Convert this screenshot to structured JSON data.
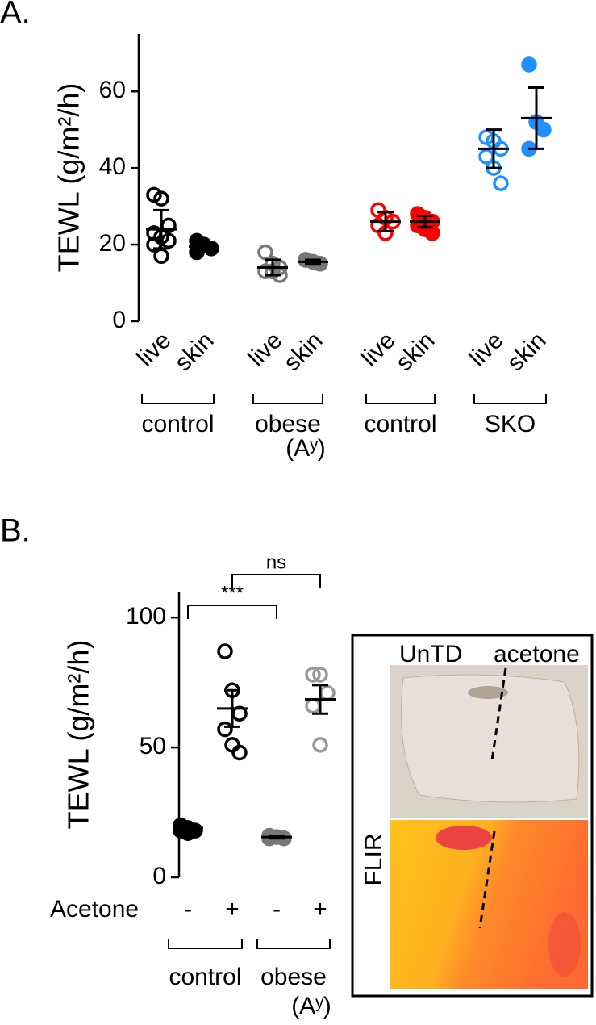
{
  "chart_data": [
    {
      "type": "strip",
      "panel": "A.",
      "ylabel": "TEWL (g/m²/h)",
      "ylim": [
        0,
        75
      ],
      "yticks": [
        0,
        20,
        40,
        60
      ],
      "groups": [
        {
          "label": "control",
          "categories": [
            {
              "label": "live",
              "color": "#000000",
              "filled": false,
              "values": [
                33,
                32,
                25,
                23,
                22,
                21,
                20,
                17
              ],
              "mean": 24,
              "error": 5
            },
            {
              "label": "skin",
              "color": "#000000",
              "filled": true,
              "values": [
                21,
                20,
                19,
                18
              ],
              "mean": 19.5,
              "error": 1
            }
          ]
        },
        {
          "label": "obese",
          "sublabel": "(Aʸ)",
          "categories": [
            {
              "label": "live",
              "color": "#777777",
              "filled": false,
              "values": [
                18,
                15,
                14,
                13,
                13,
                12
              ],
              "mean": 14,
              "error": 2
            },
            {
              "label": "skin",
              "color": "#777777",
              "filled": true,
              "values": [
                16,
                15.5,
                15,
                16
              ],
              "mean": 15.5,
              "error": 0.5
            }
          ]
        },
        {
          "label": "control",
          "categories": [
            {
              "label": "live",
              "color": "#ff0000",
              "filled": false,
              "values": [
                29,
                27,
                26,
                25,
                23
              ],
              "mean": 26,
              "error": 2.5
            },
            {
              "label": "skin",
              "color": "#ff0000",
              "filled": true,
              "values": [
                28,
                27,
                26,
                25,
                24,
                23
              ],
              "mean": 26,
              "error": 1.5
            }
          ]
        },
        {
          "label": "SKO",
          "categories": [
            {
              "label": "live",
              "color": "#1e90ff",
              "filled": false,
              "values": [
                48,
                47,
                45,
                43,
                40,
                36
              ],
              "mean": 45,
              "error": 5
            },
            {
              "label": "skin",
              "color": "#1e90ff",
              "filled": true,
              "values": [
                67,
                52,
                50,
                45
              ],
              "mean": 53,
              "error": 8
            }
          ]
        }
      ]
    },
    {
      "type": "strip",
      "panel": "B.",
      "ylabel": "TEWL (g/m²/h)",
      "ylim": [
        0,
        110
      ],
      "yticks": [
        0,
        50,
        100
      ],
      "row_label": "Acetone",
      "annotations": [
        "***",
        "ns"
      ],
      "groups": [
        {
          "label": "control",
          "categories": [
            {
              "label": "-",
              "color": "#000000",
              "filled": true,
              "values": [
                20,
                19,
                18,
                18,
                17
              ],
              "mean": 19,
              "error": 1
            },
            {
              "label": "+",
              "color": "#000000",
              "filled": false,
              "values": [
                87,
                72,
                63,
                57,
                51,
                48
              ],
              "mean": 65,
              "error": 7
            }
          ]
        },
        {
          "label": "obese",
          "sublabel": "(Aʸ)",
          "categories": [
            {
              "label": "-",
              "color": "#777777",
              "filled": true,
              "values": [
                16,
                15.5,
                15,
                15
              ],
              "mean": 15.5,
              "error": 0.5
            },
            {
              "label": "+",
              "color": "#999999",
              "filled": false,
              "values": [
                78,
                78,
                71,
                66,
                51
              ],
              "mean": 68.5,
              "error": 5.5
            }
          ]
        }
      ]
    }
  ],
  "inset": {
    "labels": [
      "UnTD",
      "acetone"
    ],
    "thermal_label": "FLIR"
  }
}
